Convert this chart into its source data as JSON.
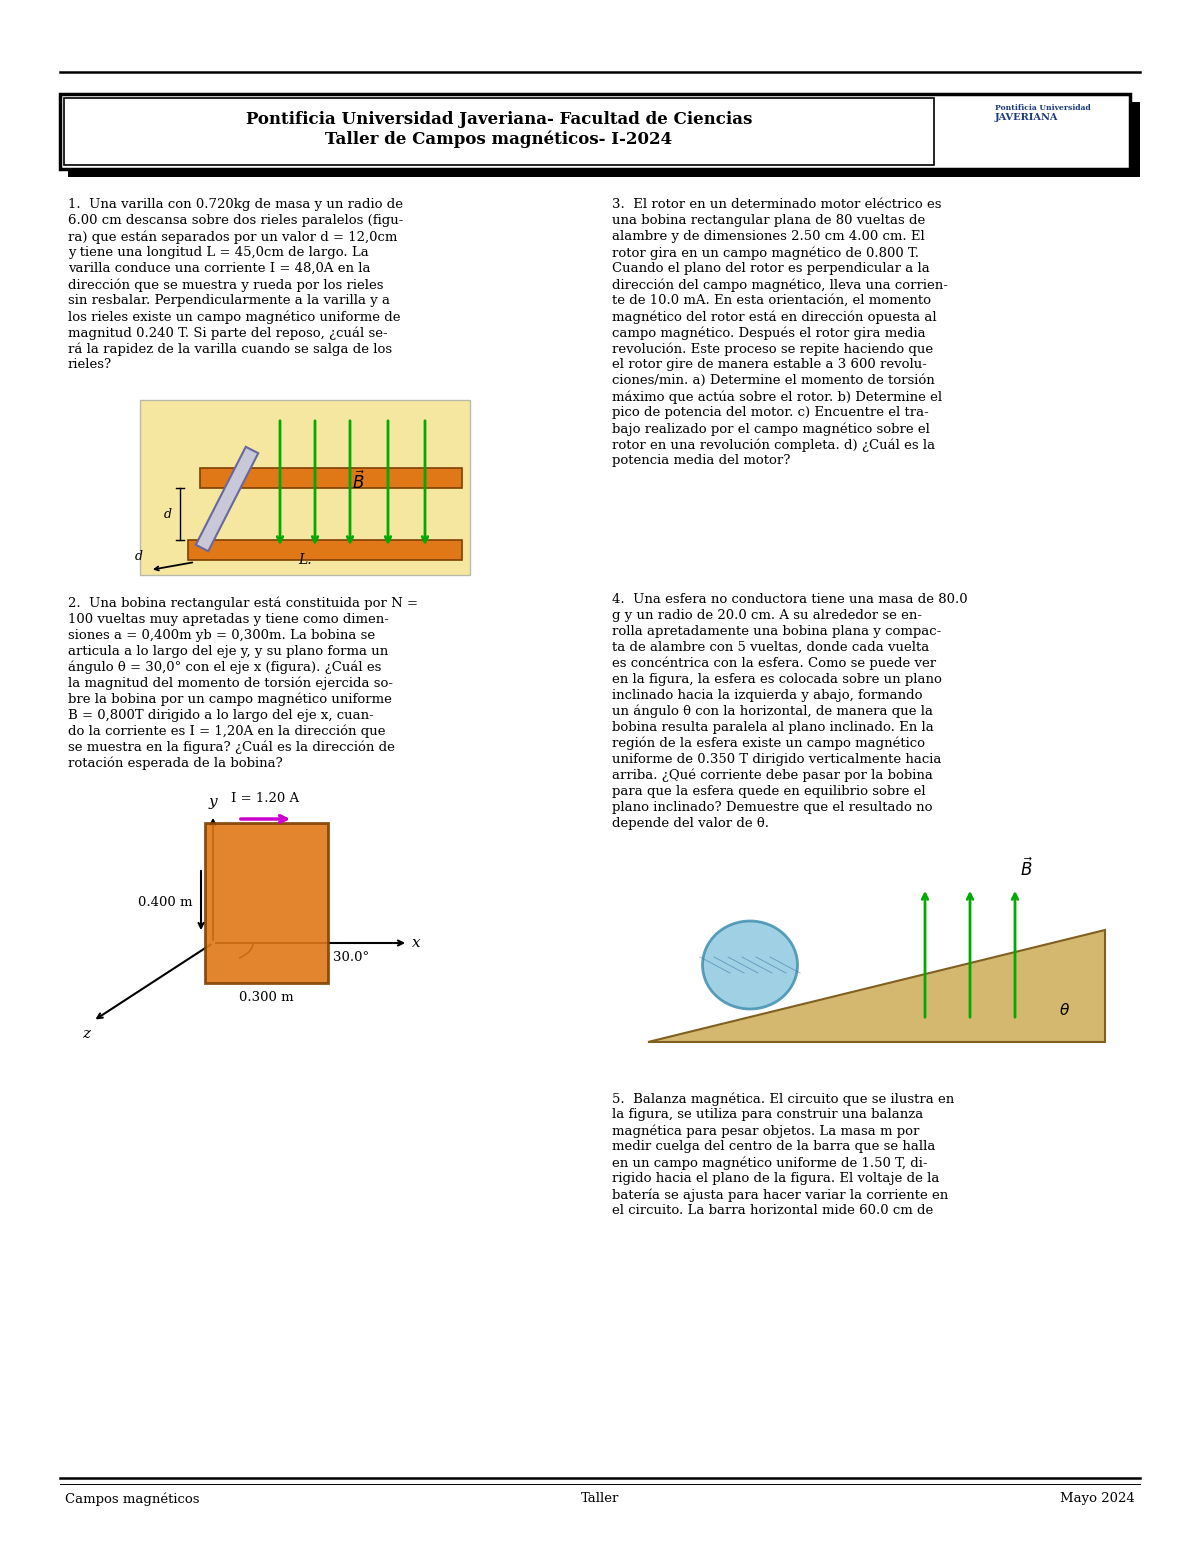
{
  "bg_color": "#ffffff",
  "header_line1": "Pontificia Universidad Javeriana- Facultad de Ciencias",
  "header_line2": "Taller de Campos magnéticos- I-2024",
  "footer_left": "Campos magnéticos",
  "footer_center": "Taller",
  "footer_right": "Mayo 2024",
  "p1": [
    "1.  Una varilla con 0.720kg de masa y un radio de",
    "6.00 cm descansa sobre dos rieles paralelos (figu-",
    "ra) que están separados por un valor d = 12,0cm",
    "y tiene una longitud L = 45,0cm de largo. La",
    "varilla conduce una corriente I = 48,0A en la",
    "dirección que se muestra y rueda por los rieles",
    "sin resbalar. Perpendicularmente a la varilla y a",
    "los rieles existe un campo magnético uniforme de",
    "magnitud 0.240 T. Si parte del reposo, ¿cuál se-",
    "rá la rapidez de la varilla cuando se salga de los",
    "rieles?"
  ],
  "p2": [
    "2.  Una bobina rectangular está constituida por N =",
    "100 vueltas muy apretadas y tiene como dimen-",
    "siones a = 0,400m yb = 0,300m. La bobina se",
    "articula a lo largo del eje y, y su plano forma un",
    "ángulo θ = 30,0° con el eje x (figura). ¿Cuál es",
    "la magnitud del momento de torsión ejercida so-",
    "bre la bobina por un campo magnético uniforme",
    "B = 0,800T dirigido a lo largo del eje x, cuan-",
    "do la corriente es I = 1,20A en la dirección que",
    "se muestra en la figura? ¿Cuál es la dirección de",
    "rotación esperada de la bobina?"
  ],
  "p3_label": "3.  El rotor en un determinado motor eléctrico es",
  "p3_cont": "una bobina rectangular plana de 80 vueltas de",
  "p3_rest": [
    "alambre y de dimensiones 2.50 cm 4.00 cm. El",
    "rotor gira en un campo magnético de 0.800 T.",
    "Cuando el plano del rotor es perpendicular a la",
    "dirección del campo magnético, lleva una corrien-",
    "te de 10.0 mA. En esta orientación, el momento",
    "magnético del rotor está en dirección opuesta al",
    "campo magnético. Después el rotor gira media",
    "revolución. Este proceso se repite haciendo que",
    "el rotor gire de manera estable a 3 600 revolu-",
    "ciones/min. a) Determine el momento de torsión",
    "máximo que actúa sobre el rotor. b) Determine el",
    "pico de potencia del motor. c) Encuentre el tra-",
    "bajo realizado por el campo magnético sobre el",
    "rotor en una revolución completa. d) ¿Cuál es la",
    "potencia media del motor?"
  ],
  "p4_label": "4.  Una esfera no conductora tiene una masa de 80.0",
  "p4_rest": [
    "g y un radio de 20.0 cm. A su alrededor se en-",
    "rolla apretadamente una bobina plana y compac-",
    "ta de alambre con 5 vueltas, donde cada vuelta",
    "es concéntrica con la esfera. Como se puede ver",
    "en la figura, la esfera es colocada sobre un plano",
    "inclinado hacia la izquierda y abajo, formando",
    "un ángulo θ con la horizontal, de manera que la",
    "bobina resulta paralela al plano inclinado. En la",
    "región de la esfera existe un campo magnético",
    "uniforme de 0.350 T dirigido verticalmente hacia",
    "arriba. ¿Qué corriente debe pasar por la bobina",
    "para que la esfera quede en equilibrio sobre el",
    "plano inclinado? Demuestre que el resultado no",
    "depende del valor de θ."
  ],
  "p5": [
    "5.  Balanza magnética. El circuito que se ilustra en",
    "la figura, se utiliza para construir una balanza",
    "magnética para pesar objetos. La masa m por",
    "medir cuelga del centro de la barra que se halla",
    "en un campo magnético uniforme de 1.50 T, di-",
    "rigido hacia el plano de la figura. El voltaje de la",
    "batería se ajusta para hacer variar la corriente en",
    "el circuito. La barra horizontal mide 60.0 cm de"
  ],
  "fig1_bg": "#f5e6a0",
  "rail_color": "#e07818",
  "rail_edge": "#804000",
  "rod_color": "#c8c8d8",
  "rod_edge": "#6868a0",
  "green_arrow": "#00aa00",
  "magenta_arrow": "#cc00cc",
  "coil_color": "#e07818",
  "sphere_color": "#90c8e0",
  "incline_color": "#d4b870"
}
